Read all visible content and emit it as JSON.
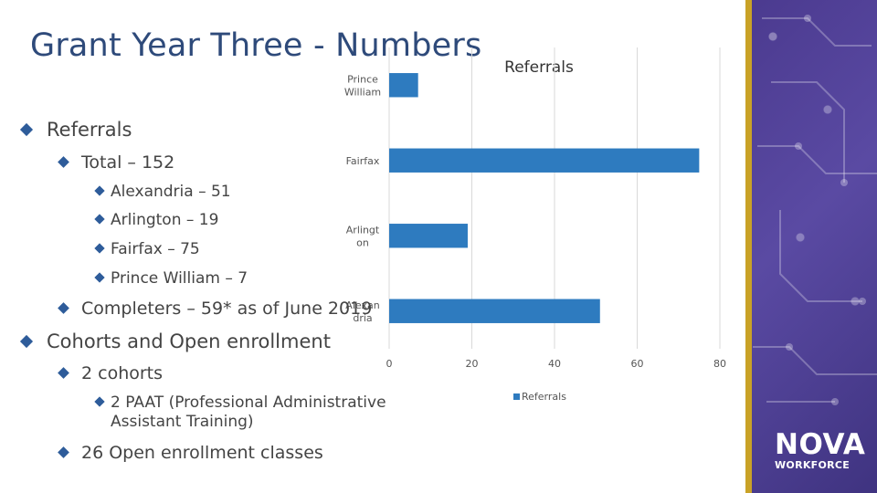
{
  "title": "Grant Year Three - Numbers",
  "bullets": {
    "referrals": "Referrals",
    "total": "Total – 152",
    "alexandria": "Alexandria – 51",
    "arlington": "Arlington – 19",
    "fairfax": "Fairfax – 75",
    "prince_william": "Prince William – 7",
    "completers": "Completers – 59* as of June 2019",
    "cohorts": "Cohorts and Open enrollment",
    "two_cohorts": "2 cohorts",
    "paat": "2 PAAT (Professional Administrative Assistant Training)",
    "open_enrollment": "26 Open enrollment classes"
  },
  "logo": {
    "line1": "NOVA",
    "line2": "WORKFORCE"
  },
  "colors": {
    "title": "#2e4a7a",
    "bar": "#2e7bbf",
    "bullet": "#2e5c9a",
    "accent_purple": "#4b3a8f",
    "accent_gold": "#c9a227"
  },
  "chart_data": {
    "type": "bar",
    "orientation": "horizontal",
    "title": "Referrals",
    "categories": [
      "Prince William",
      "Fairfax",
      "Arlington",
      "Alexandria"
    ],
    "category_labels": [
      [
        "Prince",
        "William"
      ],
      [
        "Fairfax"
      ],
      [
        "Arlingt",
        "on"
      ],
      [
        "Alexan",
        "dria"
      ]
    ],
    "series": [
      {
        "name": "Referrals",
        "values": [
          7,
          75,
          19,
          51
        ]
      }
    ],
    "xlim": [
      0,
      80
    ],
    "xticks": [
      0,
      20,
      40,
      60,
      80
    ],
    "grid": true,
    "legend": "bottom"
  }
}
